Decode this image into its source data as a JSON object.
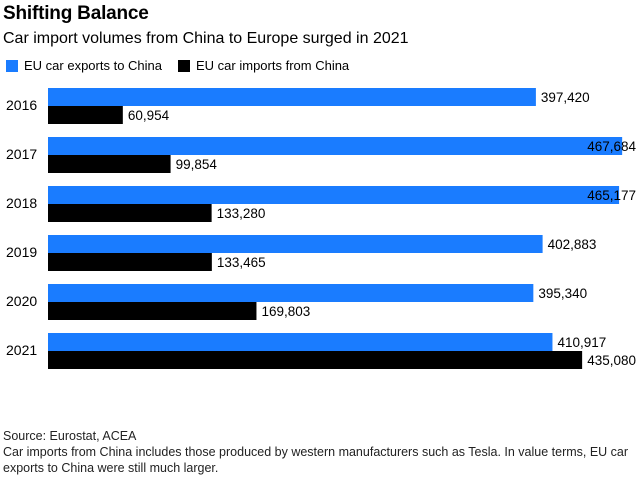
{
  "chart_data": {
    "type": "bar",
    "orientation": "horizontal",
    "title": "Shifting Balance",
    "subtitle": "Car import volumes from China to Europe surged in 2021",
    "categories": [
      "2016",
      "2017",
      "2018",
      "2019",
      "2020",
      "2021"
    ],
    "series": [
      {
        "name": "EU car exports to China",
        "color": "#1a7cff",
        "values": [
          397420,
          467684,
          465177,
          402883,
          395340,
          410917
        ],
        "labels": [
          "397,420",
          "467,684",
          "465,177",
          "402,883",
          "395,340",
          "410,917"
        ]
      },
      {
        "name": "EU car imports from China",
        "color": "#000000",
        "values": [
          60954,
          99854,
          133280,
          133465,
          169803,
          435080
        ],
        "labels": [
          "60,954",
          "99,854",
          "133,280",
          "133,465",
          "169,803",
          "435,080"
        ]
      }
    ],
    "xlim": [
      0,
      470000
    ],
    "grid": false,
    "legend": "top-left"
  },
  "footer": {
    "source": "Source: Eurostat, ACEA",
    "note": "Car imports from China includes those produced by western manufacturers such as Tesla. In value terms, EU car exports to China were still much larger."
  }
}
